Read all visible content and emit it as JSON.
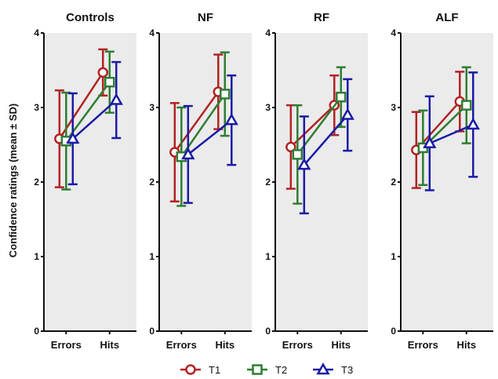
{
  "chart_data": {
    "type": "line",
    "ylabel": "Confidence ratings (mean ± SD)",
    "ylim": [
      0,
      4
    ],
    "yticks": [
      "0",
      "1",
      "2",
      "3",
      "4"
    ],
    "categories": [
      "Errors",
      "Hits"
    ],
    "colors": {
      "T1": "#b22222",
      "T2": "#2e7d32",
      "T3": "#1a1aa6"
    },
    "markers": {
      "T1": "circle",
      "T2": "square",
      "T3": "triangle"
    },
    "legend_position": "bottom",
    "legend": [
      "T1",
      "T2",
      "T3"
    ],
    "panels": [
      {
        "title": "Controls",
        "series": [
          {
            "name": "T1",
            "mean": [
              2.58,
              3.47
            ],
            "sd": [
              0.65,
              0.31
            ]
          },
          {
            "name": "T2",
            "mean": [
              2.55,
              3.34
            ],
            "sd": [
              0.65,
              0.41
            ]
          },
          {
            "name": "T3",
            "mean": [
              2.58,
              3.1
            ],
            "sd": [
              0.61,
              0.51
            ]
          }
        ]
      },
      {
        "title": "NF",
        "series": [
          {
            "name": "T1",
            "mean": [
              2.4,
              3.21
            ],
            "sd": [
              0.66,
              0.5
            ]
          },
          {
            "name": "T2",
            "mean": [
              2.34,
              3.18
            ],
            "sd": [
              0.66,
              0.56
            ]
          },
          {
            "name": "T3",
            "mean": [
              2.37,
              2.83
            ],
            "sd": [
              0.65,
              0.6
            ]
          }
        ]
      },
      {
        "title": "RF",
        "series": [
          {
            "name": "T1",
            "mean": [
              2.47,
              3.03
            ],
            "sd": [
              0.56,
              0.4
            ]
          },
          {
            "name": "T2",
            "mean": [
              2.37,
              3.14
            ],
            "sd": [
              0.66,
              0.4
            ]
          },
          {
            "name": "T3",
            "mean": [
              2.23,
              2.9
            ],
            "sd": [
              0.65,
              0.48
            ]
          }
        ]
      },
      {
        "title": "ALF",
        "series": [
          {
            "name": "T1",
            "mean": [
              2.43,
              3.08
            ],
            "sd": [
              0.51,
              0.4
            ]
          },
          {
            "name": "T2",
            "mean": [
              2.46,
              3.03
            ],
            "sd": [
              0.5,
              0.51
            ]
          },
          {
            "name": "T3",
            "mean": [
              2.52,
              2.77
            ],
            "sd": [
              0.63,
              0.7
            ]
          }
        ]
      }
    ]
  }
}
